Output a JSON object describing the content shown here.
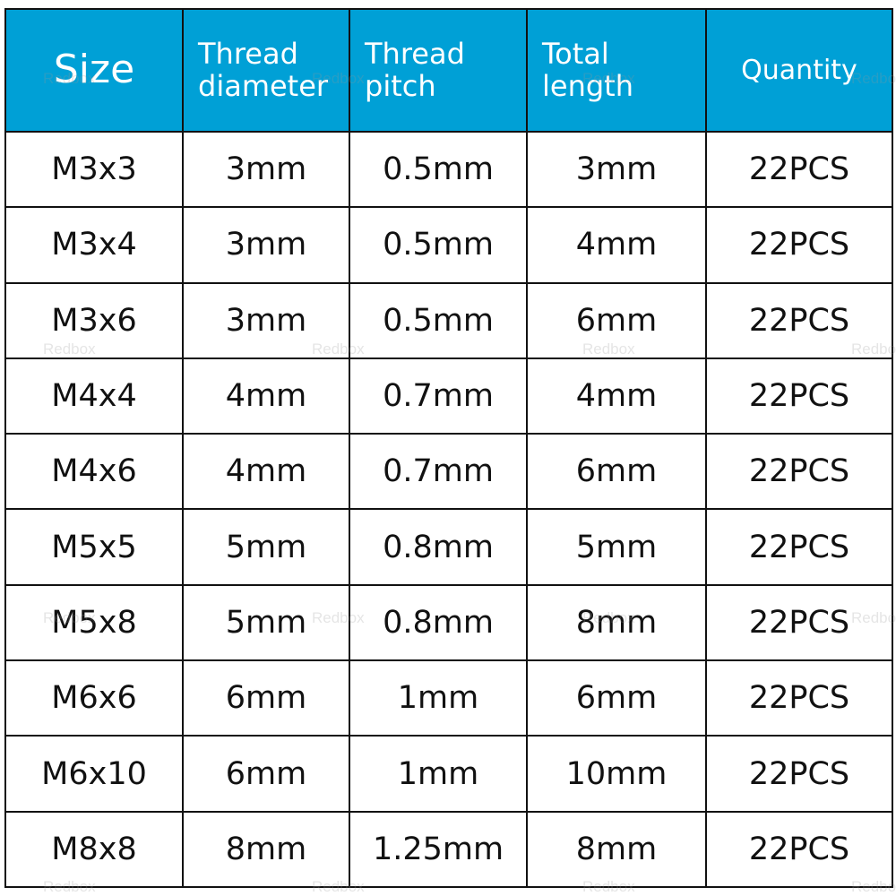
{
  "header_color": "#00a0d6",
  "watermark": "Redbox",
  "columns": [
    "Size",
    "Thread diameter",
    "Thread pitch",
    "Total length",
    "Quantity"
  ],
  "rows": [
    [
      "M3x3",
      "3mm",
      "0.5mm",
      "3mm",
      "22PCS"
    ],
    [
      "M3x4",
      "3mm",
      "0.5mm",
      "4mm",
      "22PCS"
    ],
    [
      "M3x6",
      "3mm",
      "0.5mm",
      "6mm",
      "22PCS"
    ],
    [
      "M4x4",
      "4mm",
      "0.7mm",
      "4mm",
      "22PCS"
    ],
    [
      "M4x6",
      "4mm",
      "0.7mm",
      "6mm",
      "22PCS"
    ],
    [
      "M5x5",
      "5mm",
      "0.8mm",
      "5mm",
      "22PCS"
    ],
    [
      "M5x8",
      "5mm",
      "0.8mm",
      "8mm",
      "22PCS"
    ],
    [
      "M6x6",
      "6mm",
      "1mm",
      "6mm",
      "22PCS"
    ],
    [
      "M6x10",
      "6mm",
      "1mm",
      "10mm",
      "22PCS"
    ],
    [
      "M8x8",
      "8mm",
      "1.25mm",
      "8mm",
      "22PCS"
    ]
  ]
}
